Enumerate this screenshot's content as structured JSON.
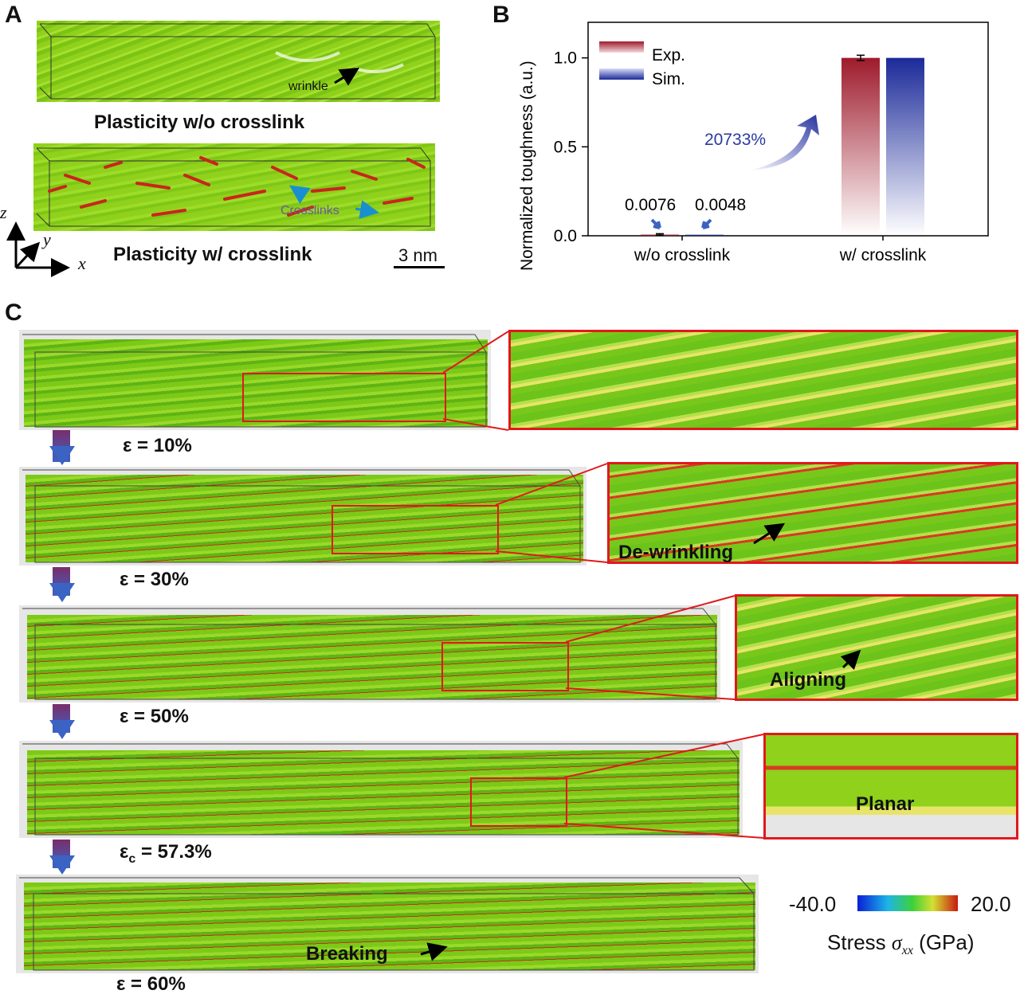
{
  "panels": {
    "a": "A",
    "b": "B",
    "c": "C"
  },
  "panel_a": {
    "top_caption": "Plasticity w/o crosslink",
    "bottom_caption": "Plasticity w/ crosslink",
    "wrinkle_label": "wrinkle",
    "crosslinks_label": "Crosslinks",
    "scale_bar": "3 nm",
    "axis_x": "x",
    "axis_y": "y",
    "axis_z": "z",
    "colors": {
      "sheet_green": "#8fd11b",
      "crosslink_red": "#c8261c"
    }
  },
  "chart_data": {
    "type": "bar",
    "categories": [
      "w/o crosslink",
      "w/ crosslink"
    ],
    "series": [
      {
        "name": "Exp.",
        "values": [
          0.0076,
          1.0
        ],
        "error": [
          0.004,
          0.015
        ],
        "color": "#9e1b2c"
      },
      {
        "name": "Sim.",
        "values": [
          0.0048,
          1.0
        ],
        "color": "#1b2a99"
      }
    ],
    "ylabel": "Normalized toughness (a.u.)",
    "xlabel": "",
    "ylim": [
      0,
      1.2
    ],
    "yticks": [
      "0.0",
      "0.5",
      "1.0"
    ],
    "annotations": [
      "0.0076",
      "0.0048",
      "20733%"
    ],
    "legend": "top-left",
    "grid": false
  },
  "panel_c": {
    "strains": [
      "ε = 10%",
      "ε = 30%",
      "ε = 50%",
      "εc = 57.3%",
      "ε = 60%"
    ],
    "critical": {
      "symbol": "ε",
      "sub": "c",
      "rest": " = 57.3%"
    },
    "zoom_labels": [
      "De-wrinkling",
      "Aligning",
      "Planar"
    ],
    "breaking_label": "Breaking",
    "colorbar": {
      "min": "-40.0",
      "max": "20.0",
      "label_prefix": "Stress ",
      "label_symbol": "σ",
      "label_sub": "xx",
      "label_suffix": " (GPa)"
    },
    "colors": {
      "box": "#e0191c",
      "arrow": "#3b63c4"
    }
  }
}
